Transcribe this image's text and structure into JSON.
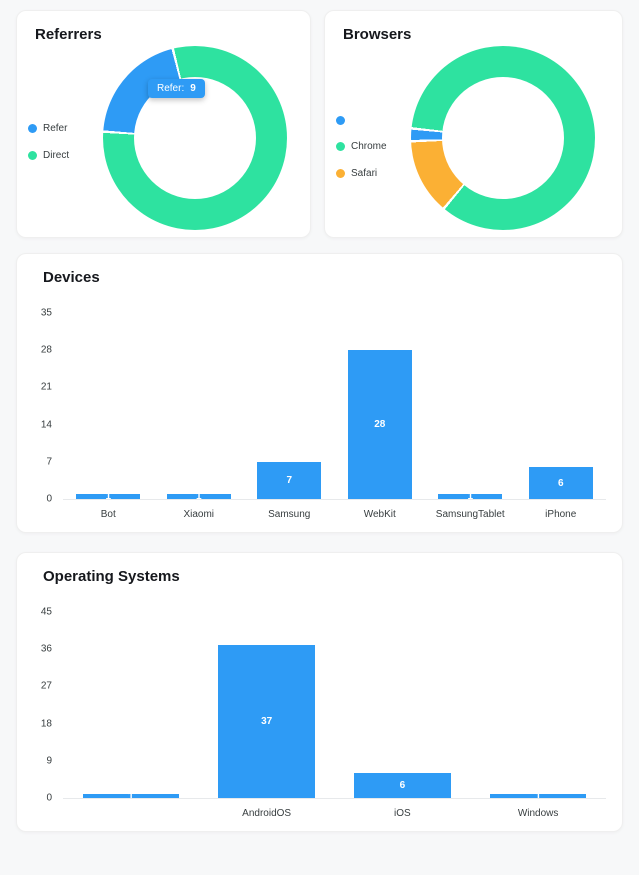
{
  "theme": {
    "series_blue": "#2E9BF5",
    "series_green": "#2EE2A0",
    "series_orange": "#FBB034",
    "axis_text": "#373d3f",
    "page_bg": "#f7f8f9",
    "card_bg": "#ffffff"
  },
  "chart_data": [
    {
      "id": "referrers",
      "type": "pie",
      "variant": "donut",
      "title": "Referrers",
      "labels": [
        "Refer",
        "Direct"
      ],
      "values": [
        9,
        36
      ],
      "colors": [
        "#2E9BF5",
        "#2EE2A0"
      ],
      "legend_position": "left",
      "start_angle_deg": 274,
      "tooltip": {
        "label": "Refer:",
        "value": "9"
      }
    },
    {
      "id": "browsers",
      "type": "pie",
      "variant": "donut",
      "title": "Browsers",
      "labels": [
        "",
        "Chrome",
        "Safari"
      ],
      "values": [
        1,
        38,
        6
      ],
      "colors": [
        "#2E9BF5",
        "#2EE2A0",
        "#FBB034"
      ],
      "legend_position": "left",
      "start_angle_deg": 268
    },
    {
      "id": "devices",
      "type": "bar",
      "title": "Devices",
      "categories": [
        "Bot",
        "Xiaomi",
        "Samsung",
        "WebKit",
        "SamsungTablet",
        "iPhone"
      ],
      "values": [
        1,
        1,
        7,
        28,
        1,
        6
      ],
      "bar_color": "#2E9BF5",
      "xlabel": "",
      "ylabel": "",
      "ylim": [
        0,
        35
      ],
      "yticks": [
        0,
        7,
        14,
        21,
        28,
        35
      ],
      "grid": false,
      "data_labels": true
    },
    {
      "id": "os",
      "type": "bar",
      "title": "Operating Systems",
      "categories": [
        "",
        "AndroidOS",
        "iOS",
        "Windows"
      ],
      "values": [
        1,
        37,
        6,
        1
      ],
      "bar_color": "#2E9BF5",
      "xlabel": "",
      "ylabel": "",
      "ylim": [
        0,
        45
      ],
      "yticks": [
        0,
        9,
        18,
        27,
        36,
        45
      ],
      "grid": false,
      "data_labels": true
    }
  ]
}
